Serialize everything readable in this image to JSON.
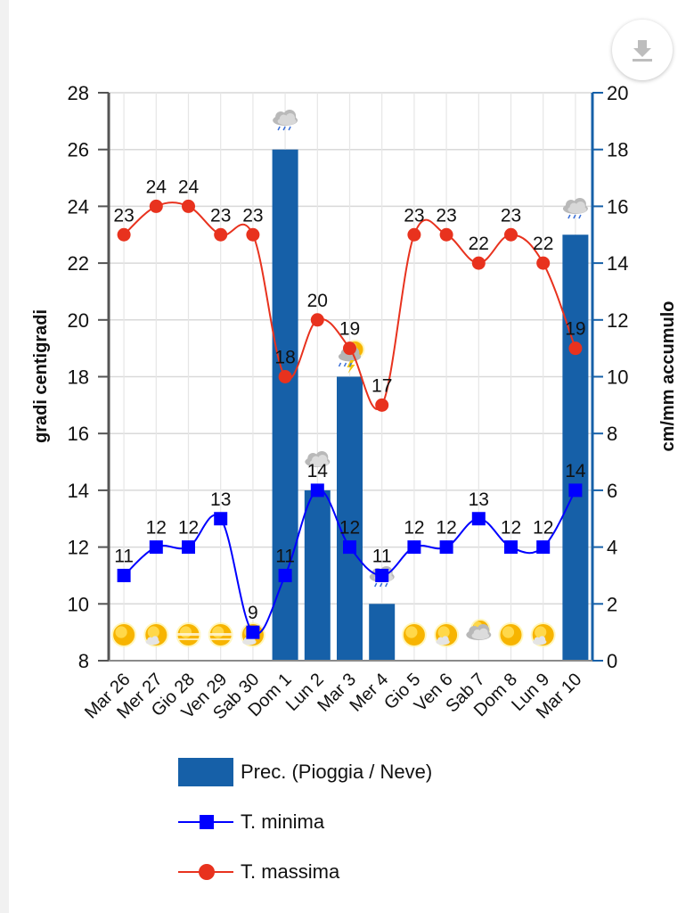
{
  "colors": {
    "precip": "#1660a8",
    "tmin": "#0000ff",
    "tmax": "#e8321e",
    "grid": "#d9d9d9",
    "left_axis": "#555555",
    "right_axis": "#1660a8"
  },
  "download_button": {
    "icon": "download-icon"
  },
  "chart_data": {
    "type": "bar+line",
    "title": "",
    "categories": [
      "Mar 26",
      "Mer 27",
      "Gio 28",
      "Ven 29",
      "Sab 30",
      "Dom 1",
      "Lun 2",
      "Mar 3",
      "Mer 4",
      "Gio 5",
      "Ven 6",
      "Sab 7",
      "Dom 8",
      "Lun 9",
      "Mar 10"
    ],
    "ylabel_left": "gradi centigradi",
    "ylabel_right": "cm/mm accumulo",
    "ylim_left": [
      8,
      28
    ],
    "ylim_right": [
      0,
      20
    ],
    "yticks_left": [
      8,
      10,
      12,
      14,
      16,
      18,
      20,
      22,
      24,
      26,
      28
    ],
    "yticks_right": [
      0,
      2,
      4,
      6,
      8,
      10,
      12,
      14,
      16,
      18,
      20
    ],
    "grid": true,
    "legend_position": "bottom",
    "series": [
      {
        "name": "Prec. (Pioggia / Neve)",
        "type": "bar",
        "axis": "right",
        "values": [
          0,
          0,
          0,
          0,
          0,
          18,
          6,
          10,
          2,
          0,
          0,
          0,
          0,
          0,
          15
        ]
      },
      {
        "name": "T. minima",
        "type": "line",
        "marker": "square",
        "axis": "left",
        "values": [
          11,
          12,
          12,
          13,
          9,
          11,
          14,
          12,
          11,
          12,
          12,
          13,
          12,
          12,
          14
        ]
      },
      {
        "name": "T. massima",
        "type": "line",
        "marker": "circle",
        "axis": "left",
        "values": [
          23,
          24,
          24,
          23,
          23,
          18,
          20,
          19,
          17,
          23,
          23,
          22,
          23,
          22,
          19
        ]
      }
    ],
    "weather_icons": [
      "sun",
      "sun-cloud",
      "sun-haze",
      "sun-haze",
      "sun-cloud",
      "rain",
      "cloud",
      "storm",
      "rain",
      "sun",
      "sun-cloud",
      "cloud-sun",
      "sun",
      "sun-cloud",
      "rain"
    ]
  },
  "legend": [
    {
      "label": "Prec. (Pioggia / Neve)",
      "kind": "bar"
    },
    {
      "label": "T. minima",
      "kind": "square"
    },
    {
      "label": "T. massima",
      "kind": "circle"
    }
  ]
}
